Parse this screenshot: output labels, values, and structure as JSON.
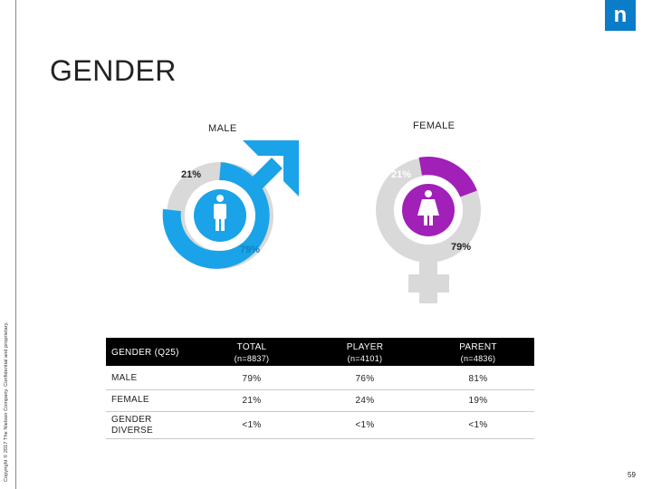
{
  "copyright": "Copyright © 2017 The Nielsen Company. Confidential and proprietary.",
  "logo_letter": "n",
  "title": "GENDER",
  "male": {
    "label": "MALE",
    "pct_top": "21%",
    "pct_bottom": "79%",
    "color": "#1aa3e8"
  },
  "female": {
    "label": "FEMALE",
    "pct_top": "21%",
    "pct_bottom": "79%",
    "color": "#a020b8"
  },
  "table": {
    "header": {
      "question": "GENDER (Q25)",
      "cols": [
        {
          "name": "TOTAL",
          "n": "(n=8837)"
        },
        {
          "name": "PLAYER",
          "n": "(n=4101)"
        },
        {
          "name": "PARENT",
          "n": "(n=4836)"
        }
      ]
    },
    "rows": [
      {
        "label": "MALE",
        "values": [
          "79%",
          "76%",
          "81%"
        ]
      },
      {
        "label": "FEMALE",
        "values": [
          "21%",
          "24%",
          "19%"
        ]
      },
      {
        "label": "GENDER",
        "label2": "DIVERSE",
        "values": [
          "<1%",
          "<1%",
          "<1%"
        ]
      }
    ]
  },
  "page_number": "59"
}
